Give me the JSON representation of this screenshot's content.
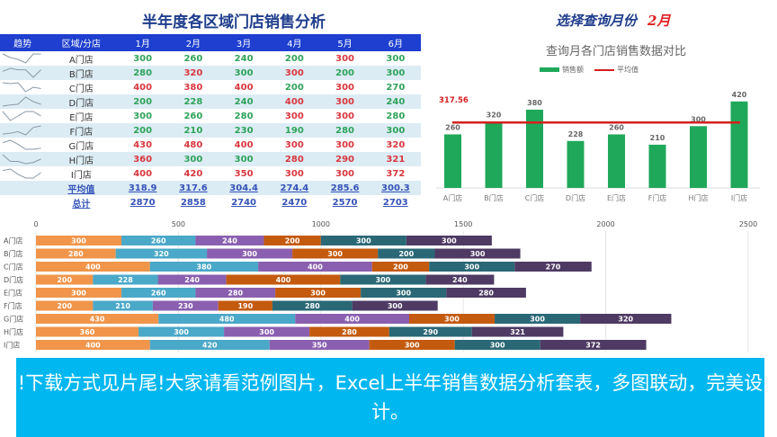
{
  "title": "半年度各区域门店销售分析",
  "table": {
    "headers": [
      "趋势",
      "区域/分店",
      "1月",
      "2月",
      "3月",
      "4月",
      "5月",
      "6月"
    ],
    "rows": [
      {
        "store": "A门店",
        "values": [
          300,
          260,
          240,
          200,
          300,
          300
        ]
      },
      {
        "store": "B门店",
        "values": [
          280,
          320,
          300,
          300,
          200,
          300
        ]
      },
      {
        "store": "C门店",
        "values": [
          400,
          380,
          400,
          200,
          300,
          270
        ]
      },
      {
        "store": "D门店",
        "values": [
          200,
          228,
          240,
          400,
          300,
          240
        ]
      },
      {
        "store": "E门店",
        "values": [
          300,
          260,
          280,
          300,
          300,
          280
        ]
      },
      {
        "store": "F门店",
        "values": [
          200,
          210,
          230,
          190,
          280,
          300
        ]
      },
      {
        "store": "G门店",
        "values": [
          430,
          480,
          400,
          300,
          300,
          320
        ]
      },
      {
        "store": "H门店",
        "values": [
          360,
          300,
          300,
          280,
          290,
          321
        ]
      },
      {
        "store": "I门店",
        "values": [
          400,
          420,
          350,
          300,
          300,
          372
        ]
      }
    ],
    "average": {
      "label": "平均值",
      "values": [
        "318.9",
        "317.6",
        "304.4",
        "274.4",
        "285.6",
        "300.3"
      ]
    },
    "total": {
      "label": "总计",
      "values": [
        "2870",
        "2858",
        "2740",
        "2470",
        "2570",
        "2703"
      ]
    },
    "colors": {
      "header": "#1e3fcf",
      "good": "#2ea35a",
      "bad": "#d9363e"
    }
  },
  "selector": {
    "label": "选择查询月份",
    "month": "2月"
  },
  "chart_data": [
    {
      "type": "bar",
      "title": "查询月各门店销售数据对比",
      "categories": [
        "A门店",
        "B门店",
        "C门店",
        "D门店",
        "E门店",
        "F门店",
        "H门店",
        "I门店"
      ],
      "series": [
        {
          "name": "销售额",
          "values": [
            260,
            320,
            380,
            228,
            260,
            210,
            300,
            420
          ],
          "color": "#1fa85a"
        }
      ],
      "reference_line": {
        "name": "平均值",
        "value": 317.56,
        "label": "317.56",
        "color": "#d42020"
      },
      "legend": "top"
    },
    {
      "type": "stacked-bar-horizontal",
      "categories": [
        "A门店",
        "B门店",
        "C门店",
        "D门店",
        "E门店",
        "F门店",
        "G门店",
        "H门店",
        "I门店"
      ],
      "series": [
        {
          "values": [
            300,
            280,
            400,
            200,
            300,
            200,
            430,
            360,
            400
          ],
          "color": "#f0954a"
        },
        {
          "values": [
            260,
            320,
            380,
            228,
            260,
            210,
            480,
            300,
            420
          ],
          "color": "#4aa8c8"
        },
        {
          "values": [
            240,
            300,
            400,
            240,
            280,
            230,
            400,
            300,
            350
          ],
          "color": "#8a5fb0"
        },
        {
          "values": [
            200,
            300,
            200,
            400,
            300,
            190,
            300,
            280,
            300
          ],
          "color": "#c45a0e"
        },
        {
          "values": [
            300,
            200,
            300,
            300,
            300,
            280,
            300,
            290,
            300
          ],
          "color": "#2a6876"
        },
        {
          "values": [
            300,
            300,
            270,
            240,
            280,
            300,
            320,
            321,
            372
          ],
          "color": "#4e3a63"
        }
      ],
      "xlim": [
        0,
        2500
      ],
      "xticks": [
        "0",
        "500",
        "1000",
        "1500",
        "2000",
        "2500"
      ],
      "grid": true
    }
  ],
  "banner": "!下载方式见片尾!大家请看范例图片，Excel上半年销售数据分析套表，多图联动，完美设计。"
}
